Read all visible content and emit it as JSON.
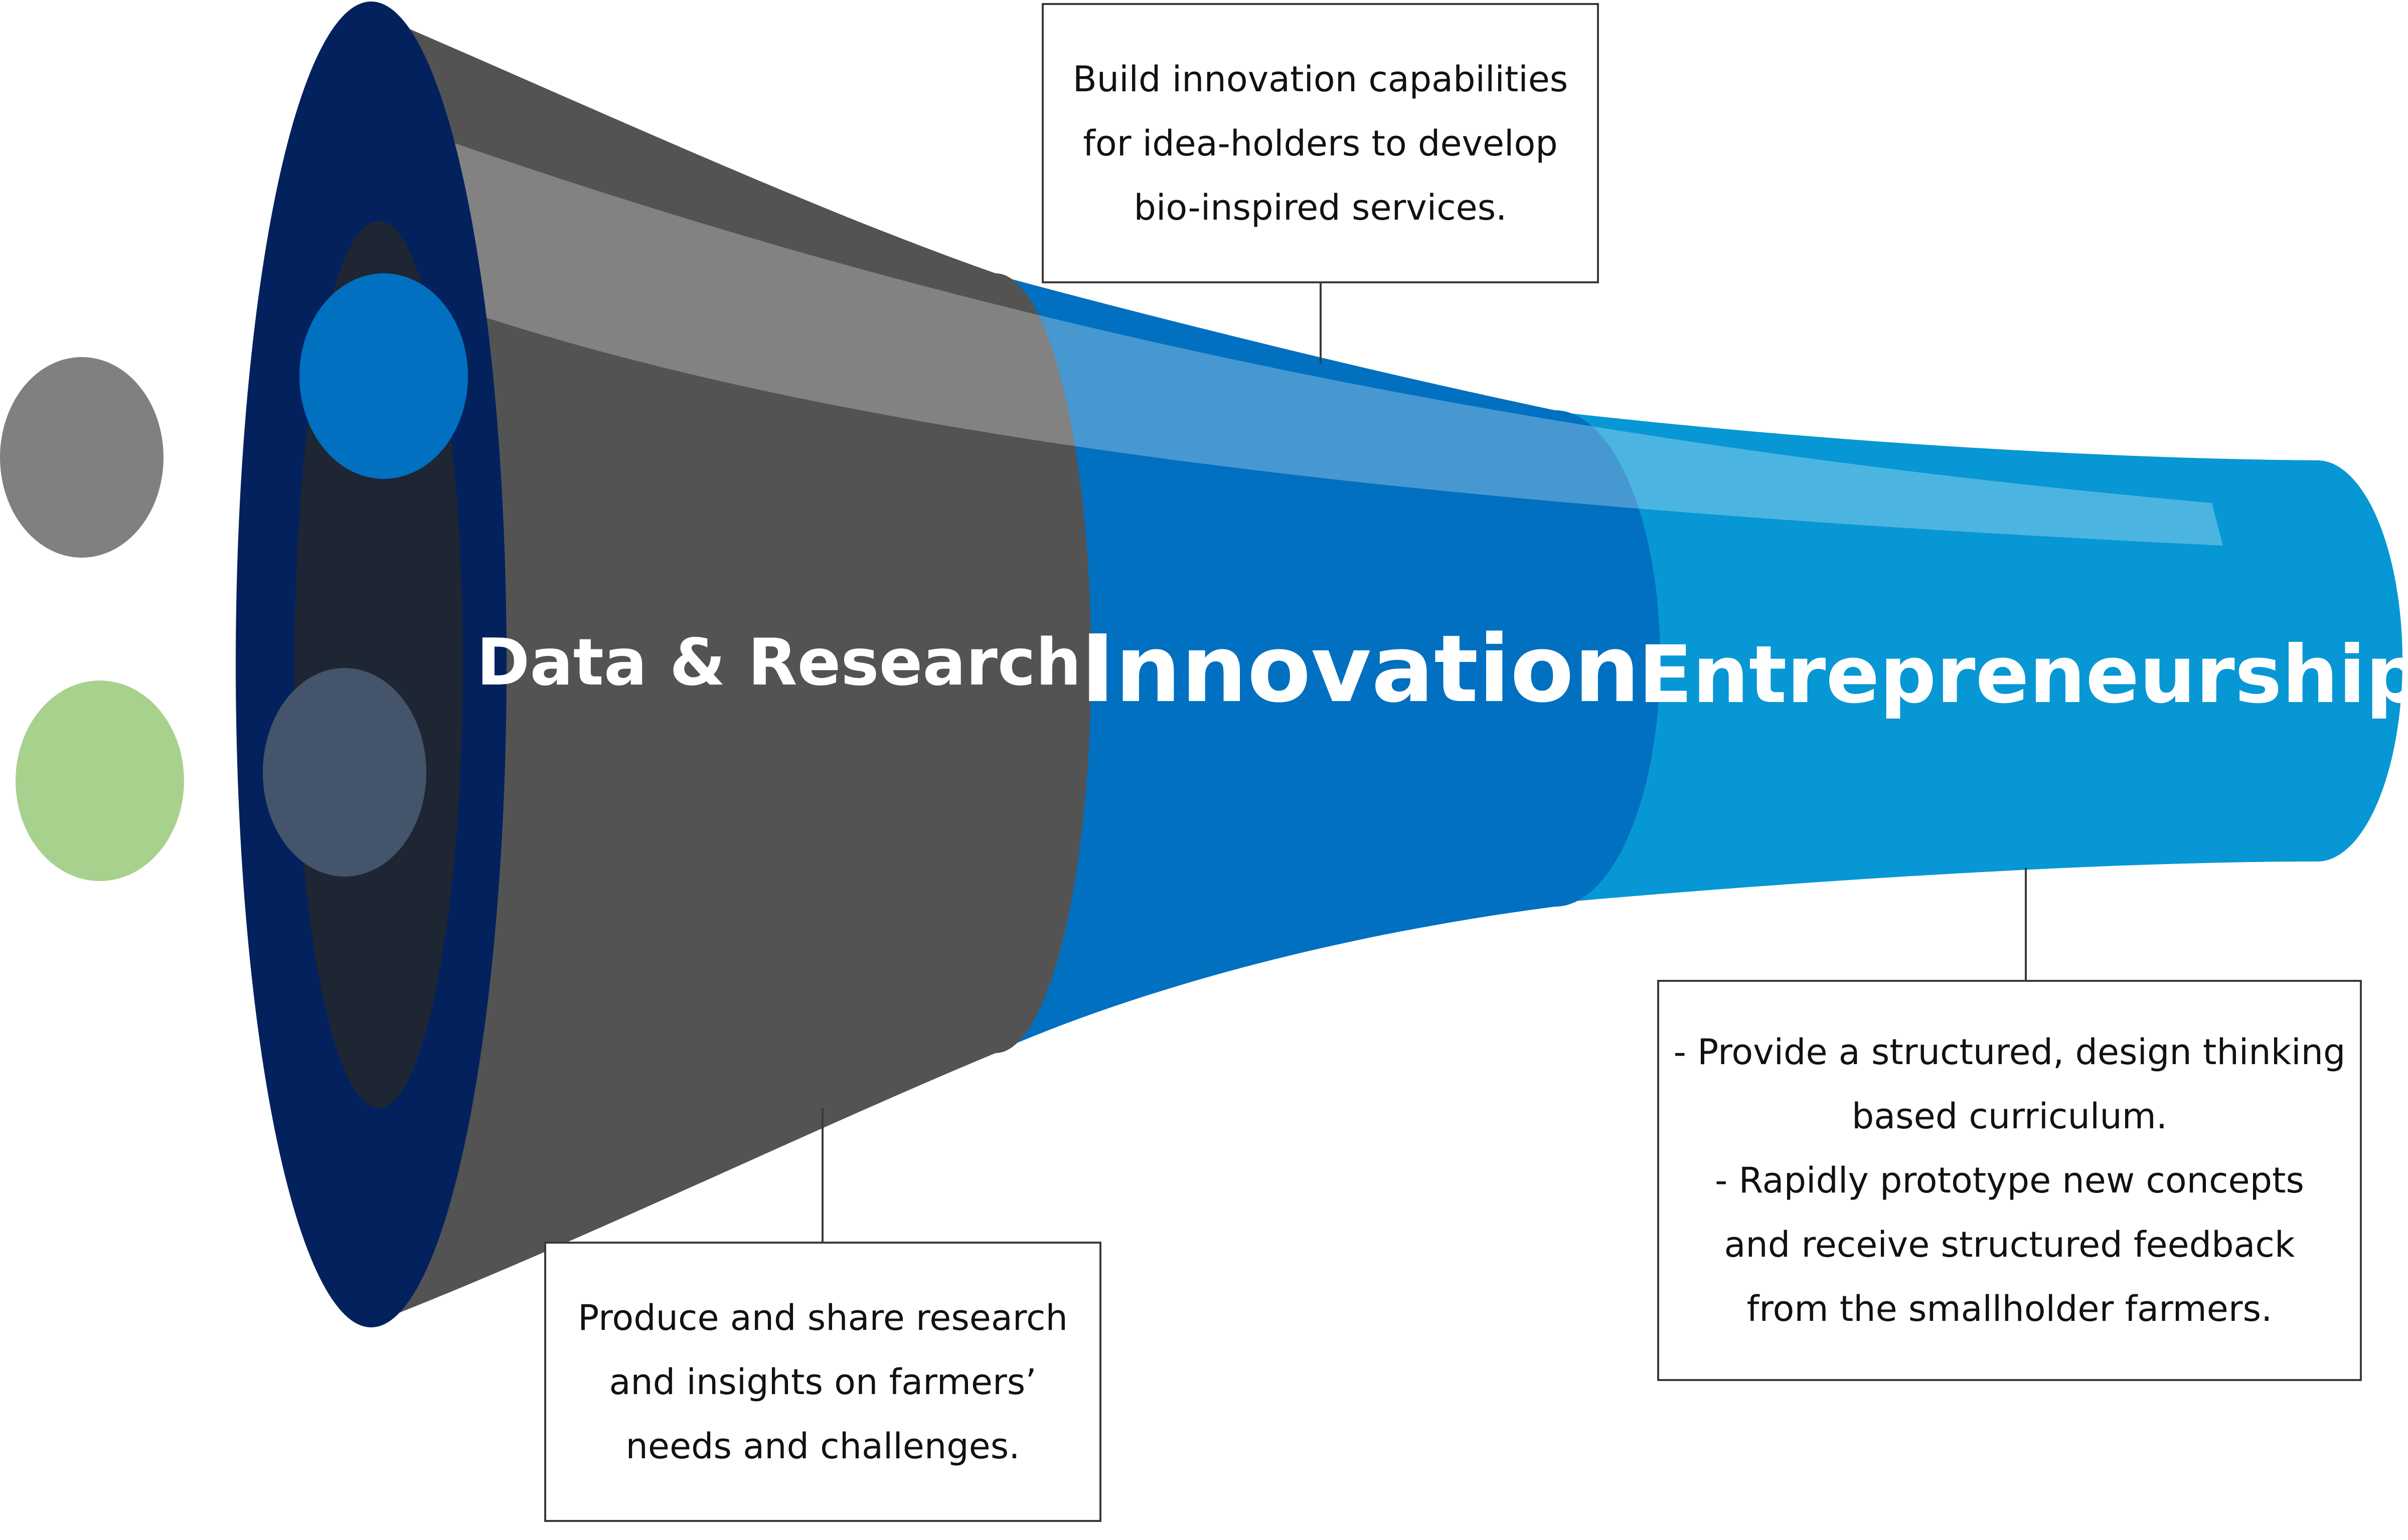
{
  "stages": [
    {
      "id": "data-research",
      "label": "Data & Research",
      "color": "#535353"
    },
    {
      "id": "innovation",
      "label": "Innovation",
      "color": "#0170c0"
    },
    {
      "id": "entrepreneurship",
      "label": "Entrepreneurship",
      "color": "#0797d4"
    }
  ],
  "callouts": {
    "innovation": {
      "lines": [
        "Build innovation capabilities",
        "for idea-holders to develop",
        "bio-inspired services."
      ]
    },
    "research": {
      "lines": [
        "Produce and share research",
        "and insights on farmers’",
        "needs and challenges."
      ]
    },
    "entrepreneurship": {
      "lines": [
        "- Provide a structured, design thinking",
        "based curriculum.",
        "- Rapidly prototype new concepts",
        "and receive structured feedback",
        "from the smallholder farmers."
      ]
    }
  },
  "colors": {
    "mouth_rim": "#03215d",
    "mouth_inner": "#1e2533",
    "dot_grey": "#808080",
    "dot_green": "#a9d18e",
    "dot_blue": "#0170c0",
    "dot_slate": "#44546a"
  }
}
